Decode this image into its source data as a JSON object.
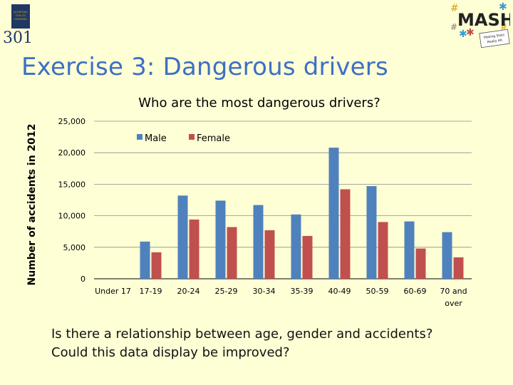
{
  "slide": {
    "title": "Exercise 3: Dangerous drivers",
    "question1": "Is there a relationship between age, gender and accidents?",
    "question2": "Could this data display be improved?"
  },
  "logos": {
    "left": {
      "number": "301",
      "text_lines": [
        "ACHIEVING",
        "FOR ITS",
        "LEARNING"
      ]
    },
    "right": {
      "word": "MASH",
      "small_text": [
        "Making Stats",
        "Really Hit"
      ]
    }
  },
  "colors": {
    "background": "#ffffd6",
    "title": "#3d6fc4",
    "male": "#4f81bd",
    "female": "#c0504d",
    "logo_dark": "#1f3864",
    "logo_gold": "#d4a017"
  },
  "chart_data": {
    "type": "bar",
    "title": "Who are the most dangerous drivers?",
    "xlabel": "",
    "ylabel": "Number of accidents in 2012",
    "categories": [
      "Under 17",
      "17-19",
      "20-24",
      "25-29",
      "30-34",
      "35-39",
      "40-49",
      "50-59",
      "60-69",
      "70 and over"
    ],
    "series": [
      {
        "name": "Male",
        "values": [
          0,
          5900,
          13200,
          12400,
          11700,
          10200,
          20800,
          14700,
          9100,
          7400
        ]
      },
      {
        "name": "Female",
        "values": [
          0,
          4200,
          9400,
          8200,
          7700,
          6800,
          14200,
          9000,
          4800,
          3400
        ]
      }
    ],
    "ylim": [
      0,
      25000
    ],
    "yticks": [
      0,
      5000,
      10000,
      15000,
      20000,
      25000
    ],
    "ytick_labels": [
      "0",
      "5,000",
      "10,000",
      "15,000",
      "20,000",
      "25,000"
    ],
    "grid": true,
    "legend_position": "top-left"
  }
}
